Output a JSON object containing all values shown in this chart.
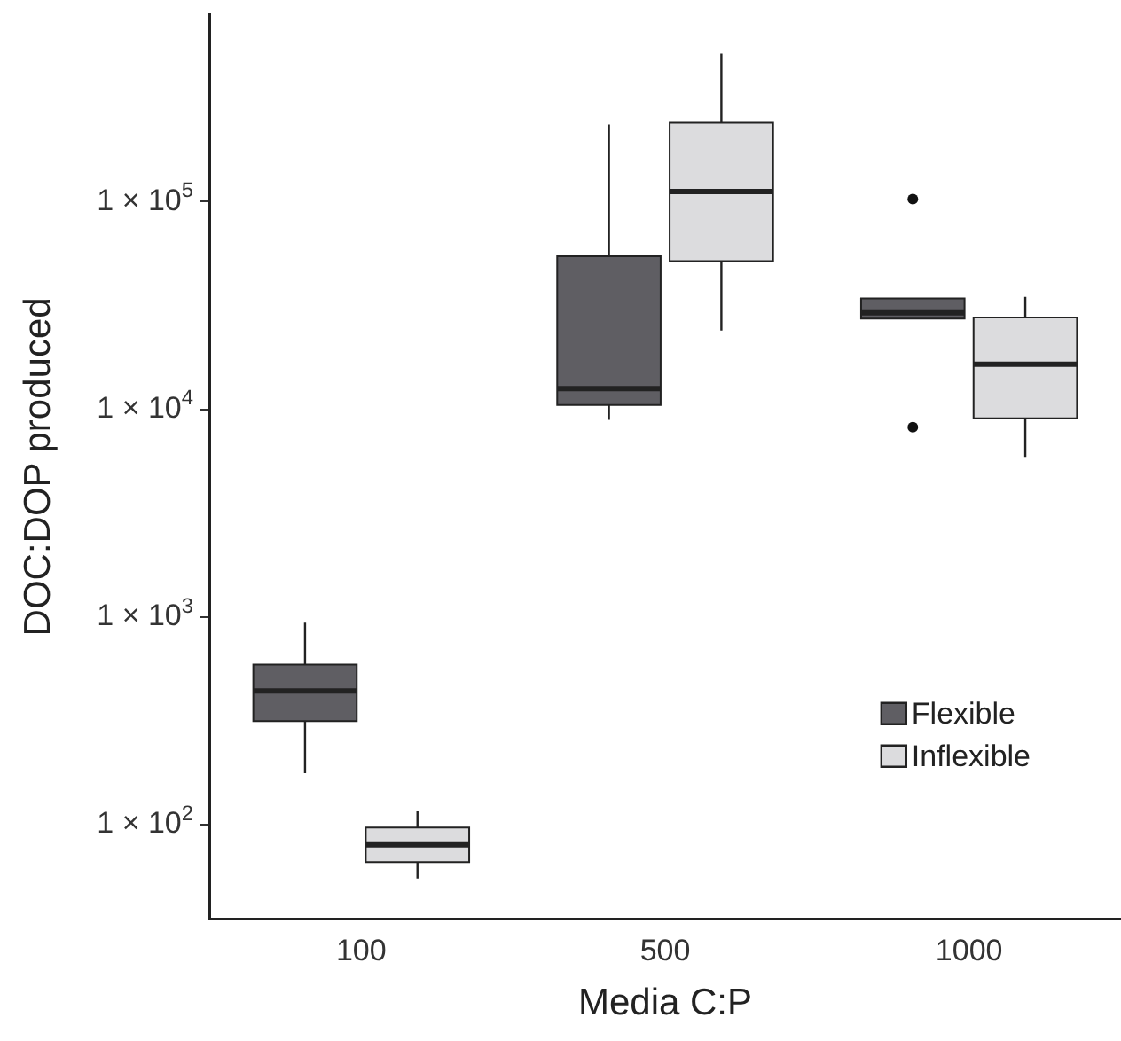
{
  "chart_data": {
    "type": "box",
    "xlabel": "Media C:P",
    "ylabel": "DOC:DOP produced",
    "categories": [
      "100",
      "500",
      "1000"
    ],
    "log": true,
    "ylim": [
      35,
      800000
    ],
    "yticks": [
      {
        "value": 100,
        "label": "1 × 10$^{2}$"
      },
      {
        "value": 1000,
        "label": "1 × 10$^{3}$"
      },
      {
        "value": 10000,
        "label": "1 × 10$^{4}$"
      },
      {
        "value": 100000,
        "label": "1 × 10$^{5}$"
      }
    ],
    "legend": "bottom right",
    "series": [
      {
        "name": "Flexible",
        "color": "#5f5e63",
        "boxes": [
          {
            "low": 177,
            "q1": 315,
            "median": 440,
            "q3": 590,
            "high": 940
          },
          {
            "low": 8900,
            "q1": 10500,
            "median": 12600,
            "q3": 54600,
            "high": 235000
          },
          {
            "low": 27400,
            "q1": 27400,
            "median": 29200,
            "q3": 34200,
            "high": 34200,
            "outliers": [
              103000,
              8200
            ]
          }
        ]
      },
      {
        "name": "Inflexible",
        "color": "#dcdcde",
        "boxes": [
          {
            "low": 55,
            "q1": 66,
            "median": 80,
            "q3": 97,
            "high": 116
          },
          {
            "low": 24000,
            "q1": 51800,
            "median": 112000,
            "q3": 240000,
            "high": 517000
          },
          {
            "low": 5900,
            "q1": 9060,
            "median": 16500,
            "q3": 27700,
            "high": 34800
          }
        ]
      }
    ]
  }
}
